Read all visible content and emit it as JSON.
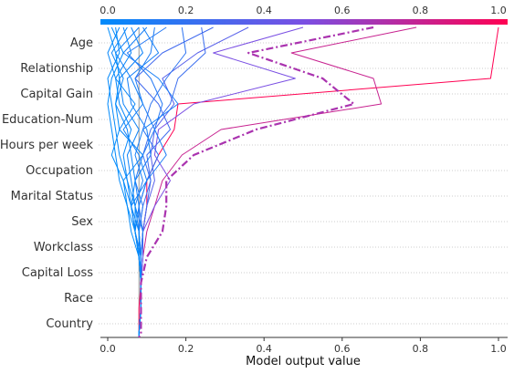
{
  "chart_data": {
    "type": "line",
    "subtype": "shap-decision-plot",
    "xlabel": "Model output value",
    "xlim": [
      0,
      1
    ],
    "x_ticks": [
      0.0,
      0.2,
      0.4,
      0.6,
      0.8,
      1.0
    ],
    "x_tick_labels": [
      "0.0",
      "0.2",
      "0.4",
      "0.6",
      "0.8",
      "1.0"
    ],
    "features": [
      "Age",
      "Relationship",
      "Capital Gain",
      "Education-Num",
      "Hours per week",
      "Occupation",
      "Marital Status",
      "Sex",
      "Workclass",
      "Capital Loss",
      "Race",
      "Country"
    ],
    "colorbar": {
      "colors": [
        "#008bfb",
        "#7a4fe3",
        "#ff0052"
      ],
      "range": [
        0,
        1
      ]
    },
    "base_value": 0.08,
    "grid": "dotted-horizontal",
    "highlighted_series_index": 0,
    "series": [
      {
        "values": [
          0.68,
          0.36,
          0.55,
          0.63,
          0.38,
          0.22,
          0.15,
          0.15,
          0.14,
          0.1,
          0.085,
          0.085,
          0.085,
          0.08
        ]
      },
      {
        "values": [
          1.0,
          0.99,
          0.98,
          0.18,
          0.17,
          0.13,
          0.1,
          0.1,
          0.09,
          0.085,
          0.085,
          0.08,
          0.08,
          0.08
        ]
      },
      {
        "values": [
          0.79,
          0.47,
          0.68,
          0.7,
          0.29,
          0.19,
          0.14,
          0.12,
          0.1,
          0.09,
          0.085,
          0.085,
          0.08,
          0.08
        ]
      },
      {
        "values": [
          0.5,
          0.27,
          0.48,
          0.22,
          0.13,
          0.12,
          0.16,
          0.12,
          0.09,
          0.09,
          0.085,
          0.085,
          0.08,
          0.08
        ]
      },
      {
        "values": [
          0.36,
          0.23,
          0.14,
          0.17,
          0.12,
          0.11,
          0.12,
          0.1,
          0.09,
          0.09,
          0.085,
          0.085,
          0.08,
          0.08
        ]
      },
      {
        "values": [
          0.27,
          0.14,
          0.07,
          0.13,
          0.16,
          0.1,
          0.11,
          0.1,
          0.09,
          0.085,
          0.085,
          0.085,
          0.08,
          0.08
        ]
      },
      {
        "values": [
          0.24,
          0.25,
          0.18,
          0.16,
          0.11,
          0.09,
          0.11,
          0.09,
          0.08,
          0.085,
          0.085,
          0.085,
          0.08,
          0.08
        ]
      },
      {
        "values": [
          0.19,
          0.2,
          0.15,
          0.11,
          0.09,
          0.13,
          0.1,
          0.08,
          0.09,
          0.085,
          0.085,
          0.085,
          0.08,
          0.08
        ]
      },
      {
        "values": [
          0.15,
          0.05,
          0.11,
          0.14,
          0.12,
          0.09,
          0.07,
          0.09,
          0.08,
          0.085,
          0.085,
          0.085,
          0.08,
          0.08
        ]
      },
      {
        "values": [
          0.12,
          0.11,
          0.07,
          0.09,
          0.12,
          0.15,
          0.1,
          0.08,
          0.08,
          0.085,
          0.085,
          0.085,
          0.08,
          0.08
        ]
      },
      {
        "values": [
          0.1,
          0.04,
          0.13,
          0.18,
          0.09,
          0.07,
          0.09,
          0.07,
          0.09,
          0.085,
          0.085,
          0.085,
          0.08,
          0.08
        ]
      },
      {
        "values": [
          0.09,
          0.13,
          0.05,
          0.06,
          0.1,
          0.11,
          0.07,
          0.08,
          0.07,
          0.085,
          0.085,
          0.085,
          0.08,
          0.08
        ]
      },
      {
        "values": [
          0.08,
          0.02,
          0.06,
          0.09,
          0.04,
          0.08,
          0.1,
          0.06,
          0.07,
          0.085,
          0.085,
          0.085,
          0.08,
          0.08
        ]
      },
      {
        "values": [
          0.06,
          0.09,
          0.03,
          0.04,
          0.08,
          0.05,
          0.06,
          0.07,
          0.08,
          0.085,
          0.085,
          0.085,
          0.08,
          0.08
        ]
      },
      {
        "values": [
          0.05,
          0.01,
          0.04,
          0.02,
          0.05,
          0.06,
          0.07,
          0.06,
          0.07,
          0.08,
          0.085,
          0.085,
          0.08,
          0.08
        ]
      },
      {
        "values": [
          0.04,
          0.06,
          0.02,
          0.07,
          0.03,
          0.09,
          0.04,
          0.06,
          0.07,
          0.08,
          0.085,
          0.085,
          0.08,
          0.08
        ]
      },
      {
        "values": [
          0.03,
          0.0,
          0.02,
          0.03,
          0.06,
          0.04,
          0.05,
          0.06,
          0.08,
          0.08,
          0.085,
          0.085,
          0.08,
          0.08
        ]
      },
      {
        "values": [
          0.02,
          0.03,
          0.0,
          0.01,
          0.02,
          0.03,
          0.05,
          0.07,
          0.07,
          0.08,
          0.085,
          0.085,
          0.08,
          0.08
        ]
      },
      {
        "values": [
          0.01,
          0.04,
          0.01,
          0.0,
          0.01,
          0.02,
          0.03,
          0.05,
          0.07,
          0.08,
          0.085,
          0.085,
          0.08,
          0.08
        ]
      },
      {
        "values": [
          0.0,
          0.02,
          0.03,
          0.02,
          0.03,
          0.01,
          0.04,
          0.05,
          0.06,
          0.08,
          0.085,
          0.085,
          0.08,
          0.08
        ]
      }
    ]
  }
}
